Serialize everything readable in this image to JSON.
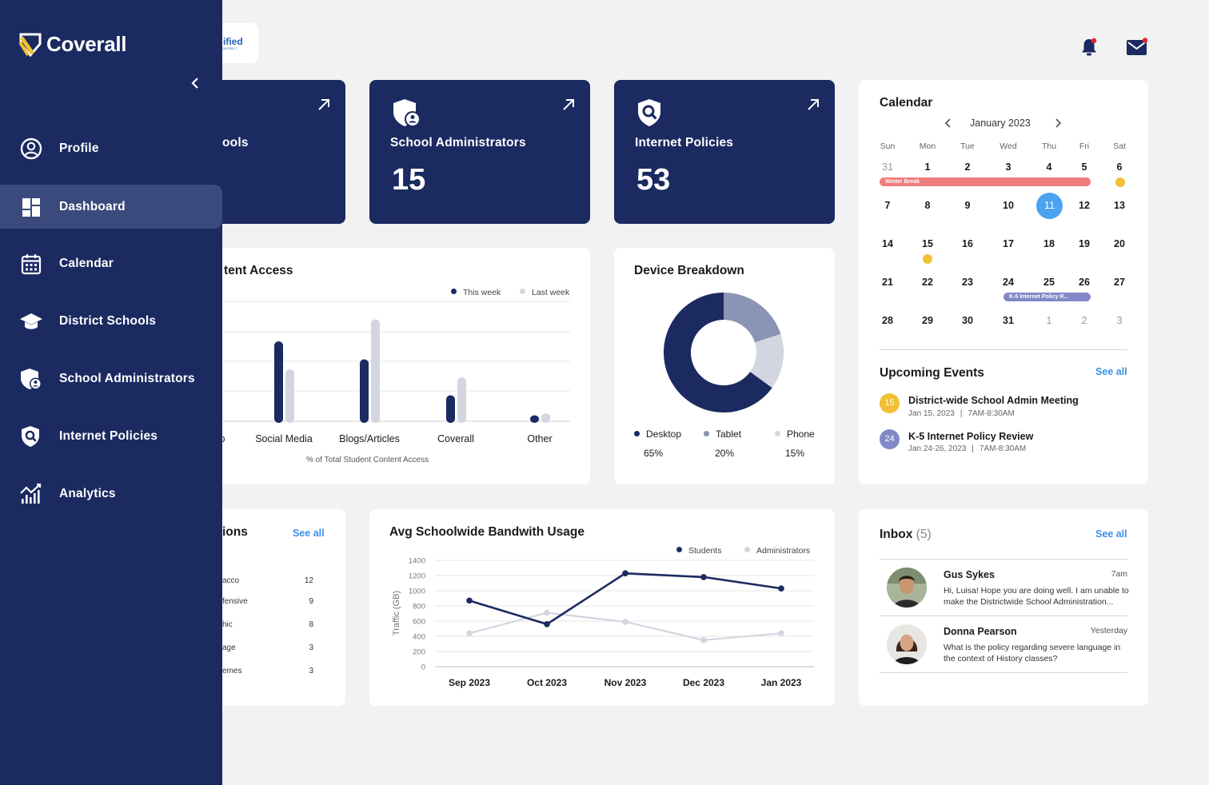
{
  "sidebar": {
    "brand": "Coverall",
    "items": [
      {
        "label": "Profile"
      },
      {
        "label": "Dashboard"
      },
      {
        "label": "Calendar"
      },
      {
        "label": "District Schools"
      },
      {
        "label": "School Administrators"
      },
      {
        "label": "Internet Policies"
      },
      {
        "label": "Analytics"
      }
    ],
    "active_index": 1
  },
  "header": {
    "district_logo_text": "ified",
    "district_logo_sub": "L DISTRICT",
    "has_notification": true,
    "has_mail": true
  },
  "stats": [
    {
      "title": "ools",
      "value": ""
    },
    {
      "title": "School Administrators",
      "value": "15"
    },
    {
      "title": "Internet Policies",
      "value": "53"
    }
  ],
  "content_access": {
    "title": "tent Access",
    "legend": [
      "This week",
      "Last week"
    ],
    "categories": [
      "o",
      "Social Media",
      "Blogs/Articles",
      "Coverall",
      "Other"
    ],
    "xlabel": "% of Total Student Content Access"
  },
  "device": {
    "title": "Device Breakdown",
    "items": [
      {
        "label": "Desktop",
        "pct": "65%",
        "color": "#1b2a60"
      },
      {
        "label": "Tablet",
        "pct": "20%",
        "color": "#8a94b4"
      },
      {
        "label": "Phone",
        "pct": "15%",
        "color": "#d3d5e0"
      }
    ]
  },
  "calendar": {
    "title": "Calendar",
    "month": "January 2023",
    "dow": [
      "Sun",
      "Mon",
      "Tue",
      "Wed",
      "Thu",
      "Fri",
      "Sat"
    ],
    "weeks": [
      [
        "31",
        "1",
        "2",
        "3",
        "4",
        "5",
        "6"
      ],
      [
        "7",
        "8",
        "9",
        "10",
        "11",
        "12",
        "13"
      ],
      [
        "14",
        "15",
        "16",
        "17",
        "18",
        "19",
        "20"
      ],
      [
        "21",
        "22",
        "23",
        "24",
        "25",
        "26",
        "27"
      ],
      [
        "28",
        "29",
        "30",
        "31",
        "1",
        "2",
        "3"
      ]
    ],
    "selected": "11",
    "bar1": "Winter Break",
    "bar2": "K-5 Internet Policy R..."
  },
  "events": {
    "title": "Upcoming Events",
    "see_all": "See all",
    "items": [
      {
        "badge": "15",
        "title": "District-wide School Admin Meeting",
        "date": "Jan 15, 2023",
        "time": "7AM-8:30AM",
        "color": "#f1c033"
      },
      {
        "badge": "24",
        "title": "K-5 Internet Policy Review",
        "date": "Jan 24-26, 2023",
        "time": "7AM-8:30AM",
        "color": "#8188c7"
      }
    ]
  },
  "violations": {
    "title": "ions",
    "see_all": "See all",
    "rows": [
      {
        "label": "acco",
        "value": "12"
      },
      {
        "label": "fensive",
        "value": "9"
      },
      {
        "label": "hic",
        "value": "8"
      },
      {
        "label": "age",
        "value": "3"
      },
      {
        "label": "emes",
        "value": "3"
      }
    ]
  },
  "bandwidth": {
    "title": "Avg Schoolwide Bandwith Usage",
    "legend": [
      "Students",
      "Administrators"
    ],
    "ylabel": "Traffic (GB)"
  },
  "inbox": {
    "title": "Inbox",
    "count": "(5)",
    "see_all": "See all",
    "messages": [
      {
        "name": "Gus Sykes",
        "time": "7am",
        "text": "Hi, Luisa! Hope you are doing well. I am unable to make the Districtwide School Administration..."
      },
      {
        "name": "Donna Pearson",
        "time": "Yesterday",
        "text": "What is the policy regarding severe language in the context of History classes?"
      }
    ]
  },
  "chart_data": [
    {
      "type": "bar",
      "title": "tent Access",
      "categories": [
        "o",
        "Social Media",
        "Blogs/Articles",
        "Coverall",
        "Other"
      ],
      "series": [
        {
          "name": "This week",
          "values": [
            null,
            40,
            31,
            13,
            3
          ],
          "color": "#1b2a60"
        },
        {
          "name": "Last week",
          "values": [
            null,
            26,
            51,
            22,
            4
          ],
          "color": "#d3d5e0"
        }
      ],
      "xlabel": "% of Total Student Content Access"
    },
    {
      "type": "pie",
      "title": "Device Breakdown",
      "labels": [
        "Desktop",
        "Tablet",
        "Phone"
      ],
      "values": [
        65,
        20,
        15
      ],
      "colors": [
        "#1b2a60",
        "#8a94b4",
        "#d3d5e0"
      ]
    },
    {
      "type": "line",
      "title": "Avg Schoolwide Bandwith Usage",
      "x": [
        "Sep 2023",
        "Oct 2023",
        "Nov 2023",
        "Dec 2023",
        "Jan 2023"
      ],
      "series": [
        {
          "name": "Students",
          "values": [
            870,
            560,
            1230,
            1180,
            1030
          ],
          "color": "#1b2a60"
        },
        {
          "name": "Administrators",
          "values": [
            440,
            710,
            590,
            350,
            440
          ],
          "color": "#d3d5e0"
        }
      ],
      "ylabel": "Traffic (GB)",
      "yticks": [
        "0",
        "200",
        "400",
        "600",
        "800",
        "1000",
        "1200",
        "1400"
      ],
      "ylim": [
        0,
        1400
      ]
    }
  ]
}
